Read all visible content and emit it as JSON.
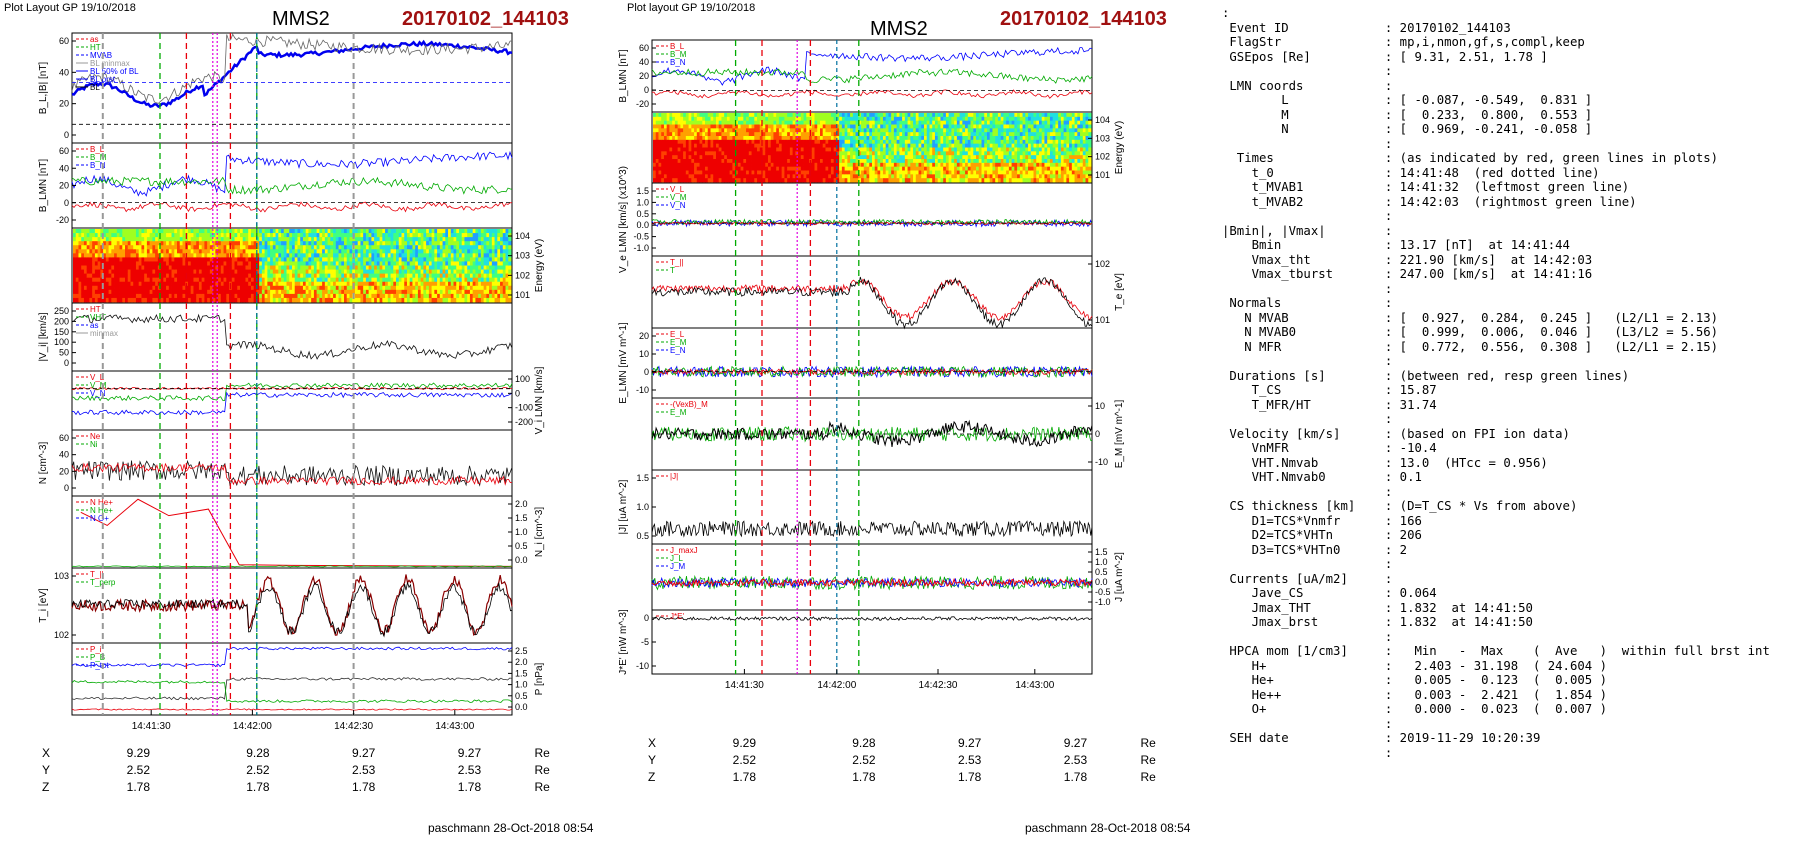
{
  "left": {
    "plot_label": "Plot Layout GP 19/10/2018",
    "station": "MMS2",
    "event": "20170102_144103",
    "footer": "paschmann 28-Oct-2018 08:54"
  },
  "middle": {
    "plot_label": "Plot layout GP 19/10/2018",
    "station": "MMS2",
    "event": "20170102_144103",
    "footer": "paschmann 28-Oct-2018 08:54"
  },
  "time_ticks": [
    "14:41:30",
    "14:42:00",
    "14:42:30",
    "14:43:00"
  ],
  "orbit": {
    "rows": [
      {
        "label": "X",
        "values": [
          "9.29",
          "9.28",
          "9.27",
          "9.27"
        ],
        "unit": "Re"
      },
      {
        "label": "Y",
        "values": [
          "2.52",
          "2.52",
          "2.53",
          "2.53"
        ],
        "unit": "Re"
      },
      {
        "label": "Z",
        "values": [
          "1.78",
          "1.78",
          "1.78",
          "1.78"
        ],
        "unit": "Re"
      }
    ]
  },
  "colors": {
    "red": "#e8000b",
    "green": "#00aa00",
    "blue": "#0000ff",
    "magenta": "#e000e0",
    "event": "#a01010"
  },
  "panels_left": [
    {
      "ylabel": "B_L,|B| [nT]",
      "legend": [
        "as",
        "HT",
        "MVAB",
        "BL minmax",
        "BL 50% of BL",
        "BL brst",
        "BL"
      ],
      "ticks_left": [
        "60",
        "40",
        "20",
        "0"
      ]
    },
    {
      "ylabel": "B_LMN [nT]",
      "legend": [
        "B_L",
        "B_M",
        "B_N"
      ],
      "ticks_left": [
        "60",
        "40",
        "20",
        "0",
        "-20"
      ]
    },
    {
      "ylabel_right": "Energy (eV)",
      "ticks_right": [
        "10^4",
        "10^3",
        "10^2",
        "10^1"
      ]
    },
    {
      "ylabel": "|V_i| [km/s]",
      "legend": [
        "HT",
        "VHT",
        "as",
        "minmax"
      ],
      "ticks_left": [
        "250",
        "200",
        "150",
        "100",
        "50",
        "0"
      ]
    },
    {
      "ylabel_right": "V_i LMN [km/s]",
      "legend": [
        "V_L",
        "V_M",
        "V_N"
      ],
      "ticks_right": [
        "100",
        "0",
        "-100",
        "-200"
      ]
    },
    {
      "ylabel": "N [cm^-3]",
      "legend": [
        "Ne",
        "Ni"
      ],
      "ticks_left": [
        "60",
        "40",
        "20",
        "0"
      ]
    },
    {
      "ylabel_right": "N_i [cm^-3]",
      "legend": [
        "N He+",
        "N He+",
        "N O+"
      ],
      "ticks_right": [
        "2.0",
        "1.5",
        "1.0",
        "0.5",
        "0.0"
      ]
    },
    {
      "ylabel": "T_i [eV]",
      "legend": [
        "T_||",
        "T_perp"
      ],
      "ticks_left": [
        "10^3",
        "10^2"
      ]
    },
    {
      "ylabel_right": "P [nPa]",
      "legend": [
        "P_i",
        "P_B",
        "P_tot"
      ],
      "ticks_right": [
        "2.5",
        "2.0",
        "1.5",
        "1.0",
        "0.5",
        "0.0"
      ]
    }
  ],
  "panels_middle": [
    {
      "ylabel": "B_LMN [nT]",
      "legend": [
        "B_L",
        "B_M",
        "B_N"
      ],
      "ticks_left": [
        "60",
        "40",
        "20",
        "0",
        "-20"
      ]
    },
    {
      "ylabel_right": "Energy (eV)",
      "ticks_right": [
        "10^4",
        "10^3",
        "10^2",
        "10^1"
      ]
    },
    {
      "ylabel": "V_e LMN [km/s] (x10^3)",
      "legend": [
        "V_L",
        "V_M",
        "V_N"
      ],
      "ticks_left": [
        "1.5",
        "1.0",
        "0.5",
        "0.0",
        "-0.5",
        "-1.0"
      ]
    },
    {
      "ylabel_right": "T_e [eV]",
      "legend": [
        "T_||",
        "T"
      ],
      "ticks_right": [
        "10^2",
        "10^1"
      ]
    },
    {
      "ylabel": "E_LMN [mV m^-1]",
      "legend": [
        "E_L",
        "E_M",
        "E_N"
      ],
      "ticks_left": [
        "20",
        "10",
        "0",
        "-10"
      ]
    },
    {
      "ylabel_right": "E_M [mV m^-1]",
      "legend": [
        "-(VexB)_M",
        "E_M"
      ],
      "ticks_right": [
        "10",
        "0",
        "-10"
      ]
    },
    {
      "ylabel": "|J| [uA m^-2]",
      "legend": [
        "|J|"
      ],
      "ticks_left": [
        "1.5",
        "1.0",
        "0.5"
      ]
    },
    {
      "ylabel_right": "J [uA m^-2]",
      "legend": [
        "J_maxJ",
        "J_L",
        "J_M"
      ],
      "ticks_right": [
        "1.5",
        "1.0",
        "0.5",
        "0.0",
        "-0.5",
        "-1.0"
      ]
    },
    {
      "ylabel": "J*E' [nW m^-3]",
      "legend": [
        "J*E'"
      ],
      "ticks_left": [
        "0",
        "-5",
        "-10"
      ]
    }
  ],
  "info_lines": [
    ":",
    " Event ID             : 20170102_144103",
    " FlagStr              : mp,i,nmon,gf,s,compl,keep",
    " GSEpos [Re]          : [ 9.31, 2.51, 1.78 ]",
    "                      :",
    " LMN coords           :",
    "        L             : [ -0.087, -0.549,  0.831 ]",
    "        M             : [  0.233,  0.800,  0.553 ]",
    "        N             : [  0.969, -0.241, -0.058 ]",
    "                      :",
    "  Times               : (as indicated by red, green lines in plots)",
    "    t_0               : 14:41:48  (red dotted line)",
    "    t_MVAB1           : 14:41:32  (leftmost green line)",
    "    t_MVAB2           : 14:42:03  (rightmost green line)",
    "                      :",
    "|Bmin|, |Vmax|        :",
    "    Bmin              : 13.17 [nT]  at 14:41:44",
    "    Vmax_tht          : 221.90 [km/s]  at 14:42:03",
    "    Vmax_tburst       : 247.00 [km/s]  at 14:41:16",
    "                      :",
    " Normals              :",
    "   N MVAB             : [  0.927,  0.284,  0.245 ]   (L2/L1 = 2.13)",
    "   N MVAB0            : [  0.999,  0.006,  0.046 ]   (L3/L2 = 5.56)",
    "   N MFR              : [  0.772,  0.556,  0.308 ]   (L2/L1 = 2.15)",
    "                      :",
    " Durations [s]        : (between red, resp green lines)",
    "    T_CS              : 15.87",
    "    T_MFR/HT          : 31.74",
    "                      :",
    " Velocity [km/s]      : (based on FPI ion data)",
    "    VnMFR             : -10.4",
    "    VHT.Nmvab         : 13.0  (HTcc = 0.956)",
    "    VHT.Nmvab0        : 0.1",
    "                      :",
    " CS thickness [km]    : (D=T_CS * Vs from above)",
    "    D1=TCS*Vnmfr      : 166",
    "    D2=TCS*VHTn       : 206",
    "    D3=TCS*VHTn0      : 2",
    "                      :",
    " Currents [uA/m2]     :",
    "    Jave_CS           : 0.064",
    "    Jmax_THT          : 1.832  at 14:41:50",
    "    Jmax_brst         : 1.832  at 14:41:50",
    "                      :",
    " HPCA mom [1/cm3]     :   Min   -  Max    (  Ave   )  within full brst int",
    "    H+                :   2.403 - 31.198  ( 24.604 )",
    "    He+               :   0.005 -  0.123  (  0.005 )",
    "    He++              :   0.003 -  2.421  (  1.854 )",
    "    O+                :   0.000 -  0.023  (  0.007 )",
    "                      :",
    " SEH date             : 2019-11-29 10:20:39",
    "                      :"
  ]
}
